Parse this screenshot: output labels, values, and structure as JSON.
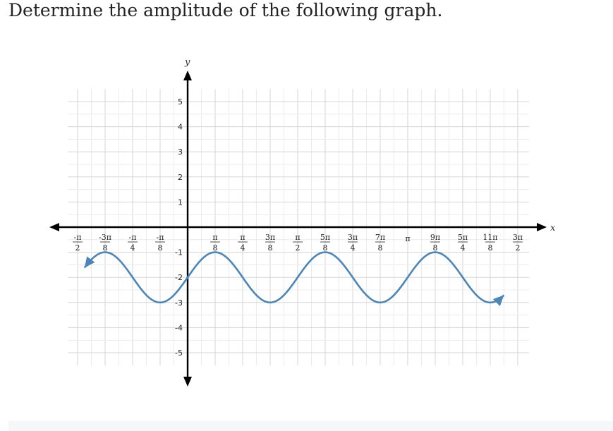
{
  "question": {
    "text": "Determine the amplitude of the following graph."
  },
  "chart_data": {
    "type": "line",
    "title": "",
    "xlabel": "x",
    "ylabel": "y",
    "xlim": [
      -1.5708,
      4.7124
    ],
    "ylim": [
      -5,
      5
    ],
    "grid": true,
    "x_ticks": [
      {
        "num": "-π",
        "den": "2"
      },
      {
        "num": "-3π",
        "den": "8"
      },
      {
        "num": "-π",
        "den": "4"
      },
      {
        "num": "-π",
        "den": "8"
      },
      {
        "num": "",
        "den": ""
      },
      {
        "num": "π",
        "den": "8"
      },
      {
        "num": "π",
        "den": "4"
      },
      {
        "num": "3π",
        "den": "8"
      },
      {
        "num": "π",
        "den": "2"
      },
      {
        "num": "5π",
        "den": "8"
      },
      {
        "num": "3π",
        "den": "4"
      },
      {
        "num": "7π",
        "den": "8"
      },
      {
        "num": "π",
        "den": ""
      },
      {
        "num": "9π",
        "den": "8"
      },
      {
        "num": "5π",
        "den": "4"
      },
      {
        "num": "11π",
        "den": "8"
      },
      {
        "num": "3π",
        "den": "2"
      }
    ],
    "y_ticks": [
      "5",
      "4",
      "3",
      "2",
      "1",
      "-1",
      "-2",
      "-3",
      "-4",
      "-5"
    ],
    "series": [
      {
        "function": "y = sin(4x) - 2",
        "amplitude": 1,
        "midline": -2,
        "period": "π/2",
        "domain": [
          -1.4726,
          4.516
        ],
        "color": "#4a86b8"
      }
    ],
    "key_points": [
      {
        "x": -1.1781,
        "y": -1
      },
      {
        "x": -0.3927,
        "y": -3
      },
      {
        "x": 0.0,
        "y": -2
      },
      {
        "x": 0.3927,
        "y": -1
      },
      {
        "x": 1.1781,
        "y": -3
      },
      {
        "x": 1.9635,
        "y": -1
      },
      {
        "x": 2.7489,
        "y": -3
      },
      {
        "x": 3.5343,
        "y": -1
      },
      {
        "x": 4.3197,
        "y": -3
      }
    ]
  }
}
